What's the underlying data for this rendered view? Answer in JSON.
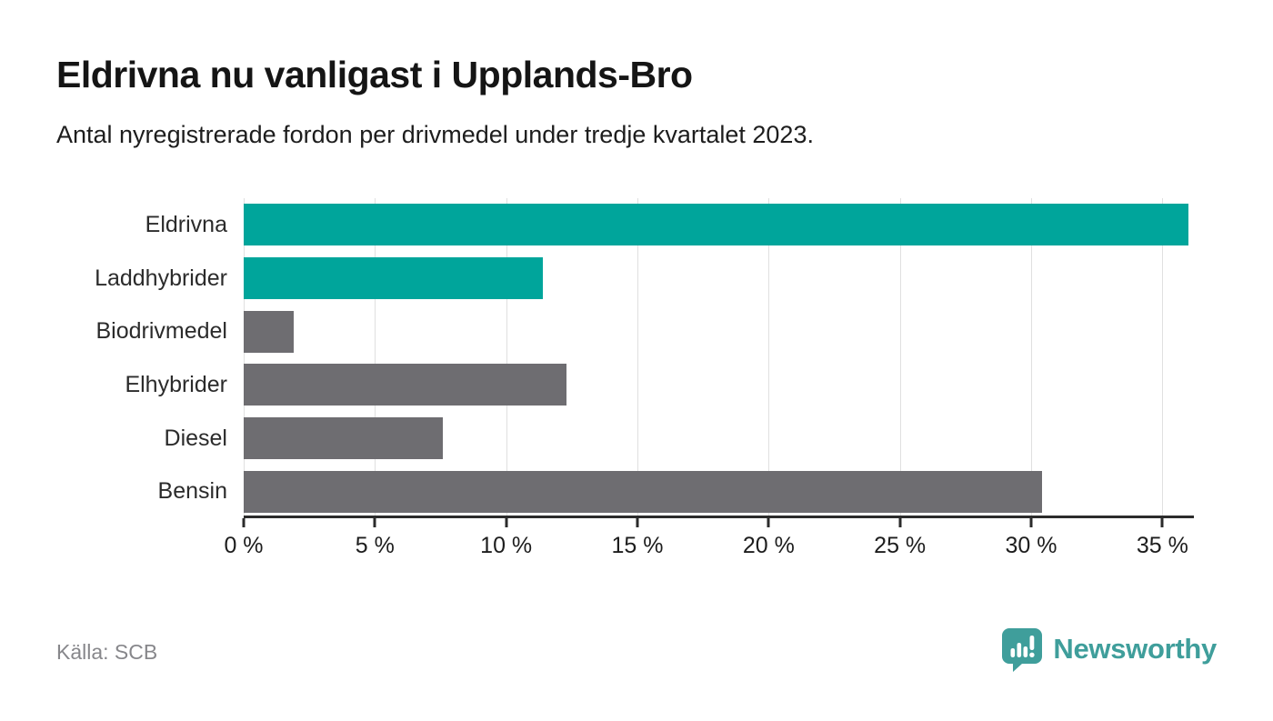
{
  "header": {
    "title": "Eldrivna nu vanligast i Upplands-Bro",
    "subtitle": "Antal nyregistrerade fordon per drivmedel under tredje kvartalet 2023."
  },
  "footer": {
    "source": "Källa: SCB",
    "brand_name": "Newsworthy",
    "brand_icon": "newsworthy-speech-bubble-chart-icon"
  },
  "colors": {
    "highlight": "#00a59b",
    "default": "#6e6d71",
    "brand": "#3f9e9b",
    "axis": "#2b2b2b",
    "gridline": "#e0e0e0",
    "muted": "#87878b"
  },
  "chart_data": {
    "type": "bar",
    "orientation": "horizontal",
    "title": "Eldrivna nu vanligast i Upplands-Bro",
    "subtitle": "Antal nyregistrerade fordon per drivmedel under tredje kvartalet 2023.",
    "categories": [
      "Eldrivna",
      "Laddhybrider",
      "Biodrivmedel",
      "Elhybrider",
      "Diesel",
      "Bensin"
    ],
    "values": [
      36.0,
      11.4,
      1.9,
      12.3,
      7.6,
      30.4
    ],
    "bar_colors": [
      "highlight",
      "highlight",
      "default",
      "default",
      "default",
      "default"
    ],
    "unit": "%",
    "xlabel": "",
    "ylabel": "",
    "xlim": [
      0,
      36.2
    ],
    "x_ticks": [
      0,
      5,
      10,
      15,
      20,
      25,
      30,
      35
    ],
    "tick_suffix": " %",
    "grid": true,
    "legend": false
  }
}
